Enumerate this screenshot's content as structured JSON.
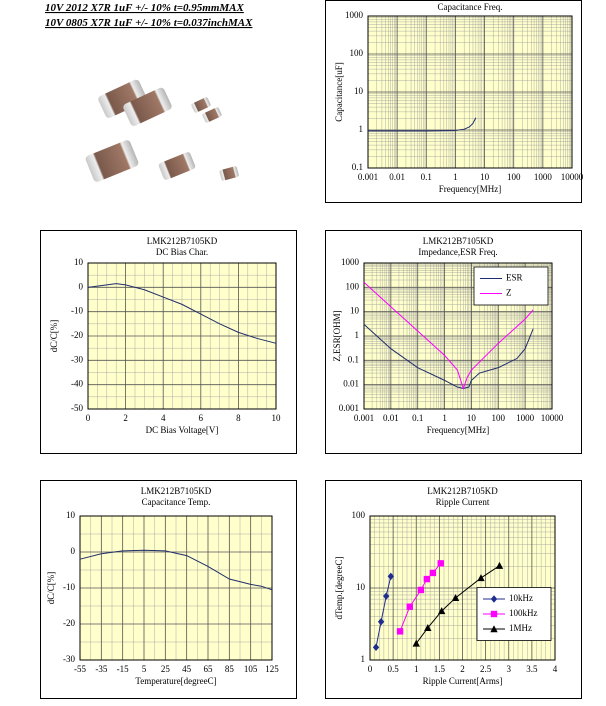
{
  "header": {
    "lines": [
      "10V 2012 X7R 1uF +/- 10% t=0.95mmMAX",
      "10V 0805 X7R 1uF +/- 10% t=0.037inchMAX"
    ]
  },
  "chart_data": [
    {
      "type": "line",
      "title": "Capacitance Freq.",
      "x_label": "Frequency[MHz]",
      "y_label": "Capacitance[uF]",
      "x": [
        0.001,
        0.01,
        0.1,
        1,
        2,
        3,
        4,
        5
      ],
      "values": [
        0.95,
        0.95,
        0.95,
        0.97,
        1.05,
        1.2,
        1.5,
        2.1
      ],
      "color": "#1f2d6b",
      "xlog": true,
      "ylog": true,
      "xlim": [
        0.001,
        10000
      ],
      "ylim": [
        0.1,
        1000
      ],
      "xticks": [
        0.001,
        0.01,
        0.1,
        1,
        10,
        100,
        1000,
        10000
      ],
      "yticks": [
        0.1,
        1,
        10,
        100,
        1000
      ],
      "grid": true
    },
    {
      "type": "line",
      "title": "LMK212B7105KD",
      "subtitle": "DC Bias Char.",
      "x_label": "DC Bias Voltage[V]",
      "y_label": "dC/C[%]",
      "x": [
        0,
        1,
        1.5,
        2,
        3,
        4,
        5,
        6,
        7,
        8,
        9,
        10
      ],
      "values": [
        0,
        1,
        1.5,
        1,
        -1,
        -4,
        -7,
        -11,
        -15,
        -18.5,
        -21,
        -23
      ],
      "color": "#1f2d6b",
      "xlim": [
        0,
        10
      ],
      "ylim": [
        -50,
        10
      ],
      "xticks": [
        0,
        2,
        4,
        6,
        8,
        10
      ],
      "yticks": [
        -50,
        -40,
        -30,
        -20,
        -10,
        0,
        10
      ],
      "grid": true
    },
    {
      "type": "line",
      "title": "LMK212B7105KD",
      "subtitle": "Impedance,ESR Freq.",
      "x_label": "Frequency[MHz]",
      "y_label": "Z,ESR[OHM]",
      "series": [
        {
          "name": "ESR",
          "color": "#1f2d6b",
          "x": [
            0.001,
            0.01,
            0.1,
            1,
            3,
            5,
            8,
            10,
            20,
            100,
            500,
            1000,
            2000
          ],
          "values": [
            3,
            0.3,
            0.05,
            0.015,
            0.008,
            0.007,
            0.008,
            0.015,
            0.03,
            0.05,
            0.12,
            0.3,
            2
          ]
        },
        {
          "name": "Z",
          "color": "#ff00ff",
          "x": [
            0.001,
            0.01,
            0.1,
            1,
            3,
            5,
            7,
            10,
            100,
            1000,
            2000
          ],
          "values": [
            159,
            16,
            1.6,
            0.16,
            0.04,
            0.007,
            0.02,
            0.04,
            0.5,
            5,
            12
          ]
        }
      ],
      "xlog": true,
      "ylog": true,
      "xlim": [
        0.001,
        10000
      ],
      "ylim": [
        0.001,
        1000
      ],
      "xticks": [
        0.001,
        0.01,
        0.1,
        1,
        10,
        100,
        1000,
        10000
      ],
      "yticks": [
        0.001,
        0.01,
        0.1,
        1,
        10,
        100,
        1000
      ],
      "grid": true,
      "legend": "top-right"
    },
    {
      "type": "line",
      "title": "LMK212B7105KD",
      "subtitle": "Capacitance Temp.",
      "x_label": "Temperature[degreeC]",
      "y_label": "dC/C[%]",
      "x": [
        -55,
        -35,
        -15,
        5,
        25,
        45,
        65,
        85,
        105,
        115,
        125
      ],
      "values": [
        -2,
        -0.5,
        0.3,
        0.5,
        0.3,
        -1,
        -4,
        -7.5,
        -9,
        -9.5,
        -10.5
      ],
      "color": "#1f2d6b",
      "xlim": [
        -55,
        125
      ],
      "ylim": [
        -30,
        10
      ],
      "xticks": [
        -55,
        -35,
        -15,
        5,
        25,
        45,
        65,
        85,
        105,
        125
      ],
      "yticks": [
        -30,
        -20,
        -10,
        0,
        10
      ],
      "grid": true
    },
    {
      "type": "line",
      "title": "LMK212B7105KD",
      "subtitle": "Ripple Current",
      "x_label": "Ripple Current[Arms]",
      "y_label": "dTemp.[degreeC]",
      "series": [
        {
          "name": "10kHz",
          "color": "#1f2d8f",
          "marker": "diamond",
          "x": [
            0.13,
            0.24,
            0.35,
            0.45
          ],
          "values": [
            1.5,
            3.4,
            7.7,
            14.5
          ]
        },
        {
          "name": "100kHz",
          "color": "#ff00ff",
          "marker": "square",
          "x": [
            0.65,
            0.86,
            1.1,
            1.23,
            1.36,
            1.53
          ],
          "values": [
            2.5,
            5.5,
            9.4,
            13.3,
            16.2,
            22
          ]
        },
        {
          "name": "1MHz",
          "color": "#000000",
          "marker": "triangle",
          "x": [
            1.0,
            1.25,
            1.55,
            1.85,
            2.4,
            2.8
          ],
          "values": [
            1.7,
            2.8,
            4.8,
            7.3,
            13.8,
            20.4
          ]
        }
      ],
      "ylog": true,
      "xlim": [
        0,
        4
      ],
      "ylim": [
        1,
        100
      ],
      "xticks": [
        0,
        0.5,
        1,
        1.5,
        2,
        2.5,
        3,
        3.5,
        4
      ],
      "yticks": [
        1,
        10,
        100
      ],
      "grid": true,
      "legend": "center-right"
    }
  ]
}
